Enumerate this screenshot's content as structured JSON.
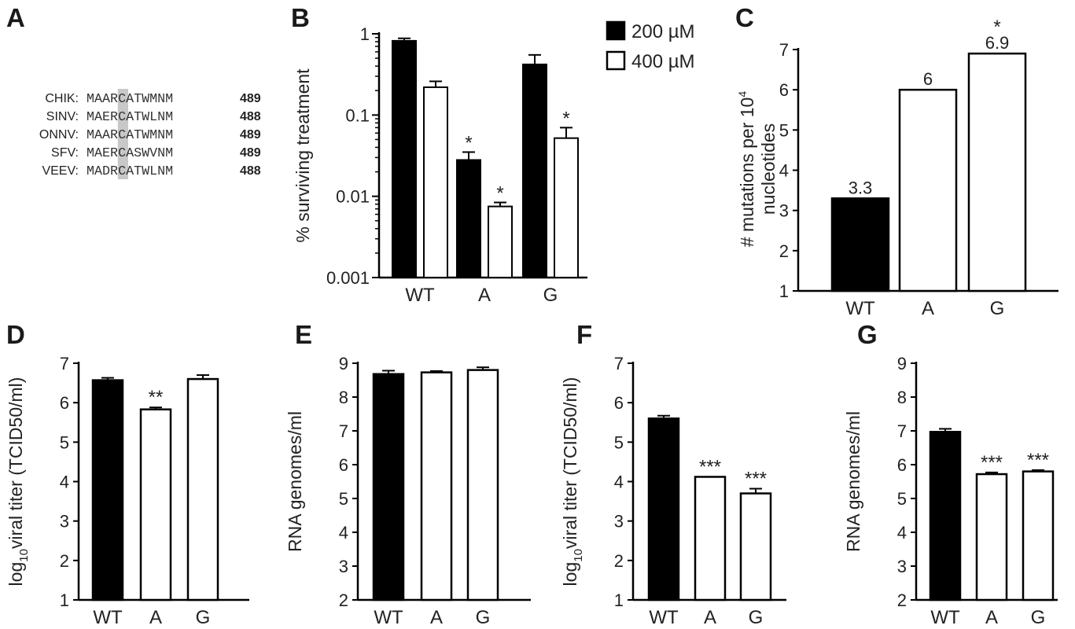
{
  "panel_labels": {
    "A": "A",
    "B": "B",
    "C": "C",
    "D": "D",
    "E": "E",
    "F": "F",
    "G": "G"
  },
  "colors": {
    "bar_filled": "#000000",
    "bar_open": "#ffffff",
    "stroke": "#000000",
    "highlight": "#c8c8c8"
  },
  "alignment": {
    "highlight_column": 4,
    "rows": [
      {
        "name": "CHIK:",
        "sequence": "MAARCATWMNM",
        "position": "489"
      },
      {
        "name": "SINV:",
        "sequence": "MAERCATWLNM",
        "position": "488"
      },
      {
        "name": "ONNV:",
        "sequence": "MAARCATWMNM",
        "position": "489"
      },
      {
        "name": "SFV:",
        "sequence": "MAERCASWVNM",
        "position": "489"
      },
      {
        "name": "VEEV:",
        "sequence": "MADRCATWLNM",
        "position": "488"
      }
    ]
  },
  "chart_data": [
    {
      "panel": "B",
      "type": "bar",
      "scale": "log",
      "categories": [
        "WT",
        "A",
        "G"
      ],
      "ylabel": "% surviving treatment",
      "ylim": [
        0.001,
        1
      ],
      "yticks": [
        "1",
        "0.1",
        "0.01",
        "0.001"
      ],
      "legend_position": "top-right",
      "series": [
        {
          "name": "200 µM",
          "fill": "filled",
          "values": [
            0.82,
            0.028,
            0.42
          ],
          "errors": [
            0.06,
            0.007,
            0.13
          ],
          "sig": [
            "",
            "*",
            ""
          ]
        },
        {
          "name": "400 µM",
          "fill": "open",
          "values": [
            0.22,
            0.0075,
            0.052
          ],
          "errors": [
            0.04,
            0.0009,
            0.018
          ],
          "sig": [
            "",
            "*",
            "*"
          ]
        }
      ]
    },
    {
      "panel": "C",
      "type": "bar",
      "categories": [
        "WT",
        "A",
        "G"
      ],
      "ylabel_line1": "# mutations per 10",
      "ylabel_sup": "4",
      "ylabel_line2": "nucleotides",
      "ylim": [
        1,
        7
      ],
      "yticks": [
        "1",
        "2",
        "3",
        "4",
        "5",
        "6",
        "7"
      ],
      "values": [
        3.3,
        6.0,
        6.9
      ],
      "value_labels": [
        "3.3",
        "6",
        "6.9"
      ],
      "fills": [
        "filled",
        "open",
        "open"
      ],
      "sig": [
        "",
        "",
        "*"
      ]
    },
    {
      "panel": "D",
      "type": "bar",
      "categories": [
        "WT",
        "A",
        "G"
      ],
      "ylabel_pre": "log",
      "ylabel_sub": "10",
      "ylabel_post": "viral titer (TCID50/ml)",
      "ylim": [
        1,
        7
      ],
      "yticks": [
        "1",
        "2",
        "3",
        "4",
        "5",
        "6",
        "7"
      ],
      "values": [
        6.57,
        5.83,
        6.6
      ],
      "errors": [
        0.06,
        0.05,
        0.1
      ],
      "fills": [
        "filled",
        "open",
        "open"
      ],
      "sig": [
        "",
        "**",
        ""
      ]
    },
    {
      "panel": "E",
      "type": "bar",
      "categories": [
        "WT",
        "A",
        "G"
      ],
      "ylabel": "RNA genomes/ml",
      "ylim": [
        2,
        9
      ],
      "yticks": [
        "2",
        "3",
        "4",
        "5",
        "6",
        "7",
        "8",
        "9"
      ],
      "values": [
        8.68,
        8.73,
        8.8
      ],
      "errors": [
        0.1,
        0.04,
        0.08
      ],
      "fills": [
        "filled",
        "open",
        "open"
      ],
      "sig": [
        "",
        "",
        ""
      ]
    },
    {
      "panel": "F",
      "type": "bar",
      "categories": [
        "WT",
        "A",
        "G"
      ],
      "ylabel_pre": "log",
      "ylabel_sub": "10",
      "ylabel_post": "viral titer (TCID50/ml)",
      "ylim": [
        1,
        7
      ],
      "yticks": [
        "1",
        "2",
        "3",
        "4",
        "5",
        "6",
        "7"
      ],
      "values": [
        5.6,
        4.12,
        3.7
      ],
      "errors": [
        0.07,
        0.0,
        0.12
      ],
      "fills": [
        "filled",
        "open",
        "open"
      ],
      "sig": [
        "",
        "***",
        "***"
      ]
    },
    {
      "panel": "G",
      "type": "bar",
      "categories": [
        "WT",
        "A",
        "G"
      ],
      "ylabel": "RNA genomes/ml",
      "ylim": [
        2,
        9
      ],
      "yticks": [
        "2",
        "3",
        "4",
        "5",
        "6",
        "7",
        "8",
        "9"
      ],
      "values": [
        6.97,
        5.72,
        5.8
      ],
      "errors": [
        0.09,
        0.05,
        0.04
      ],
      "fills": [
        "filled",
        "open",
        "open"
      ],
      "sig": [
        "",
        "***",
        "***"
      ]
    }
  ]
}
